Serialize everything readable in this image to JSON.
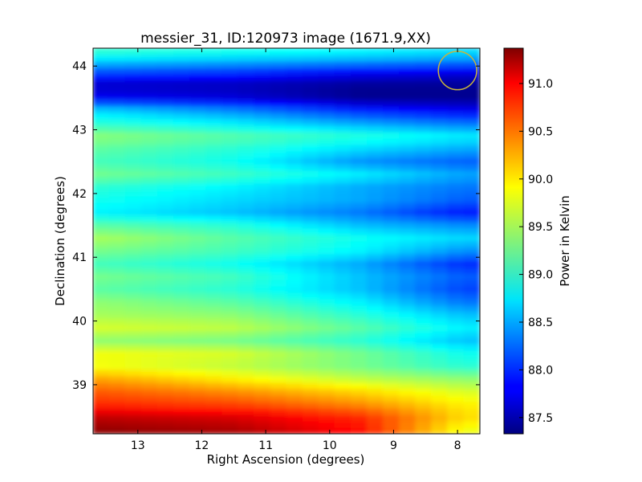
{
  "chart_data": {
    "type": "heatmap",
    "title": "messier_31, ID:120973 image (1671.9,XX)",
    "xlabel": "Right Ascension (degrees)",
    "ylabel": "Declination (degrees)",
    "xlim": [
      13.7,
      7.65
    ],
    "ylim": [
      38.23,
      44.28
    ],
    "x_inverted": true,
    "xticks": [
      13,
      12,
      11,
      10,
      9,
      8
    ],
    "xtick_labels": [
      "13",
      "12",
      "11",
      "10",
      "9",
      "8"
    ],
    "yticks": [
      39,
      40,
      41,
      42,
      43,
      44
    ],
    "ytick_labels": [
      "39",
      "40",
      "41",
      "42",
      "43",
      "44"
    ],
    "colormap": "jet",
    "colorbar": {
      "label": "Power in Kelvin",
      "range": [
        87.33,
        91.37
      ],
      "ticks": [
        87.5,
        88.0,
        88.5,
        89.0,
        89.5,
        90.0,
        90.5,
        91.0
      ],
      "tick_labels": [
        "87.5",
        "88.0",
        "88.5",
        "89.0",
        "89.5",
        "90.0",
        "90.5",
        "91.0"
      ]
    },
    "annotation": {
      "shape": "circle",
      "color": "#c8b43c",
      "ra": 8.0,
      "dec": 43.93,
      "radius_deg": 0.3
    },
    "profile_dec": [
      38.3,
      38.5,
      38.7,
      38.9,
      39.1,
      39.3,
      39.5,
      39.7,
      39.9,
      40.1,
      40.3,
      40.5,
      40.7,
      40.9,
      41.1,
      41.3,
      41.5,
      41.7,
      41.9,
      42.1,
      42.3,
      42.5,
      42.7,
      42.9,
      43.1,
      43.3,
      43.5,
      43.7,
      43.9,
      44.1,
      44.2
    ],
    "profile_ra": [
      13.5,
      11.5,
      9.5,
      7.9
    ],
    "profile_values": [
      [
        91.3,
        91.2,
        90.8,
        89.8
      ],
      [
        91.1,
        91.0,
        90.7,
        90.0
      ],
      [
        90.7,
        90.6,
        90.3,
        89.9
      ],
      [
        90.5,
        90.3,
        90.0,
        89.7
      ],
      [
        90.2,
        89.9,
        89.6,
        89.4
      ],
      [
        89.8,
        89.6,
        89.3,
        89.0
      ],
      [
        89.8,
        89.7,
        89.3,
        88.9
      ],
      [
        89.4,
        89.3,
        89.0,
        88.6
      ],
      [
        89.7,
        89.6,
        89.2,
        88.8
      ],
      [
        89.5,
        89.4,
        89.0,
        88.6
      ],
      [
        89.4,
        89.2,
        88.8,
        88.3
      ],
      [
        89.2,
        89.0,
        88.6,
        88.1
      ],
      [
        89.3,
        89.1,
        88.6,
        88.2
      ],
      [
        89.1,
        88.9,
        88.5,
        88.0
      ],
      [
        89.3,
        89.1,
        88.8,
        88.4
      ],
      [
        89.5,
        89.2,
        88.9,
        88.7
      ],
      [
        89.2,
        89.0,
        88.6,
        88.4
      ],
      [
        88.8,
        88.6,
        88.3,
        87.9
      ],
      [
        88.9,
        88.7,
        88.5,
        88.2
      ],
      [
        89.0,
        88.8,
        88.5,
        88.3
      ],
      [
        89.3,
        89.1,
        88.8,
        88.5
      ],
      [
        89.1,
        88.9,
        88.4,
        88.2
      ],
      [
        89.2,
        89.0,
        88.7,
        88.5
      ],
      [
        89.4,
        89.2,
        89.0,
        88.8
      ],
      [
        89.0,
        88.8,
        88.5,
        88.3
      ],
      [
        88.7,
        88.4,
        88.0,
        87.8
      ],
      [
        87.8,
        87.7,
        87.4,
        87.4
      ],
      [
        87.6,
        87.55,
        87.4,
        87.4
      ],
      [
        88.1,
        88.0,
        87.8,
        87.7
      ],
      [
        88.7,
        88.6,
        88.5,
        88.4
      ],
      [
        89.0,
        88.9,
        88.8,
        88.7
      ]
    ]
  }
}
